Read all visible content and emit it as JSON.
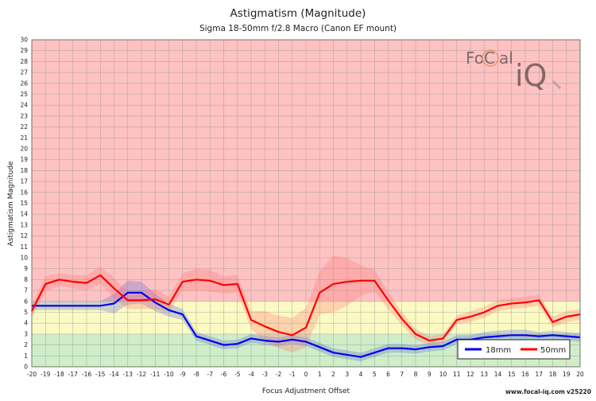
{
  "chart_data": {
    "type": "line",
    "title": "Astigmatism (Magnitude)",
    "subtitle": "Sigma 18-50mm f/2.8 Macro (Canon EF mount)",
    "xlabel": "Focus Adjustment Offset",
    "ylabel": "Astigmatism Magnitude",
    "xlim": [
      -20,
      20
    ],
    "ylim": [
      0,
      30
    ],
    "grid": true,
    "legend_position": "bottom-right",
    "zones": [
      {
        "from": 0,
        "to": 3,
        "color": "#cfeec8"
      },
      {
        "from": 3,
        "to": 6,
        "color": "#fbfac3"
      },
      {
        "from": 6,
        "to": 30,
        "color": "#ffc2c2"
      }
    ],
    "x": [
      -20,
      -19,
      -18,
      -17,
      -16,
      -15,
      -14,
      -13,
      -12,
      -11,
      -10,
      -9,
      -8,
      -7,
      -6,
      -5,
      -4,
      -3,
      -2,
      -1,
      0,
      1,
      2,
      3,
      4,
      5,
      6,
      7,
      8,
      9,
      10,
      11,
      12,
      13,
      14,
      15,
      16,
      17,
      18,
      19,
      20
    ],
    "series": [
      {
        "name": "18mm",
        "color": "#0000ee",
        "band_color": "#5060d8",
        "values": [
          5.6,
          5.6,
          5.6,
          5.6,
          5.6,
          5.6,
          5.8,
          6.8,
          6.8,
          5.9,
          5.2,
          4.8,
          2.8,
          2.4,
          2.0,
          2.1,
          2.6,
          2.4,
          2.3,
          2.5,
          2.3,
          1.8,
          1.3,
          1.1,
          0.9,
          1.3,
          1.7,
          1.7,
          1.6,
          1.8,
          1.9,
          2.5,
          2.5,
          2.7,
          2.8,
          2.9,
          2.9,
          2.8,
          2.9,
          2.8,
          2.7
        ],
        "band_width": [
          0.4,
          0.4,
          0.4,
          0.4,
          0.4,
          0.4,
          0.9,
          1.1,
          1.0,
          0.8,
          0.6,
          0.5,
          0.4,
          0.4,
          0.4,
          0.4,
          0.4,
          0.4,
          0.4,
          0.4,
          0.4,
          0.4,
          0.4,
          0.4,
          0.4,
          0.4,
          0.4,
          0.4,
          0.4,
          0.4,
          0.4,
          0.4,
          0.4,
          0.5,
          0.5,
          0.5,
          0.5,
          0.4,
          0.4,
          0.4,
          0.4
        ]
      },
      {
        "name": "50mm",
        "color": "#ff0000",
        "band_color": "#ff7070",
        "values": [
          5.1,
          7.6,
          8.0,
          7.8,
          7.7,
          8.4,
          7.2,
          6.1,
          6.1,
          6.2,
          5.7,
          7.8,
          8.0,
          7.9,
          7.5,
          7.6,
          4.3,
          3.7,
          3.2,
          2.9,
          3.6,
          6.8,
          7.6,
          7.8,
          7.9,
          7.9,
          6.1,
          4.4,
          3.0,
          2.4,
          2.6,
          4.3,
          4.6,
          5.0,
          5.6,
          5.8,
          5.9,
          6.1,
          4.1,
          4.6,
          4.8
        ],
        "band_width": [
          0.6,
          0.7,
          0.6,
          0.6,
          0.7,
          0.8,
          0.9,
          0.8,
          0.8,
          0.9,
          0.7,
          0.8,
          1.0,
          1.0,
          0.8,
          0.8,
          0.8,
          1.4,
          1.5,
          1.6,
          1.8,
          2.0,
          2.6,
          2.2,
          1.4,
          1.0,
          0.8,
          0.6,
          0.5,
          0.4,
          0.4,
          0.4,
          0.5,
          0.5,
          0.5,
          0.5,
          0.5,
          0.5,
          0.5,
          0.5,
          0.5
        ]
      }
    ]
  },
  "logo": {
    "text_fo": "Fo",
    "text_c": "C",
    "text_al": "al",
    "text_iq": "iQ"
  },
  "footer": {
    "site": "www.focal-iq.com",
    "version": "v25220"
  }
}
